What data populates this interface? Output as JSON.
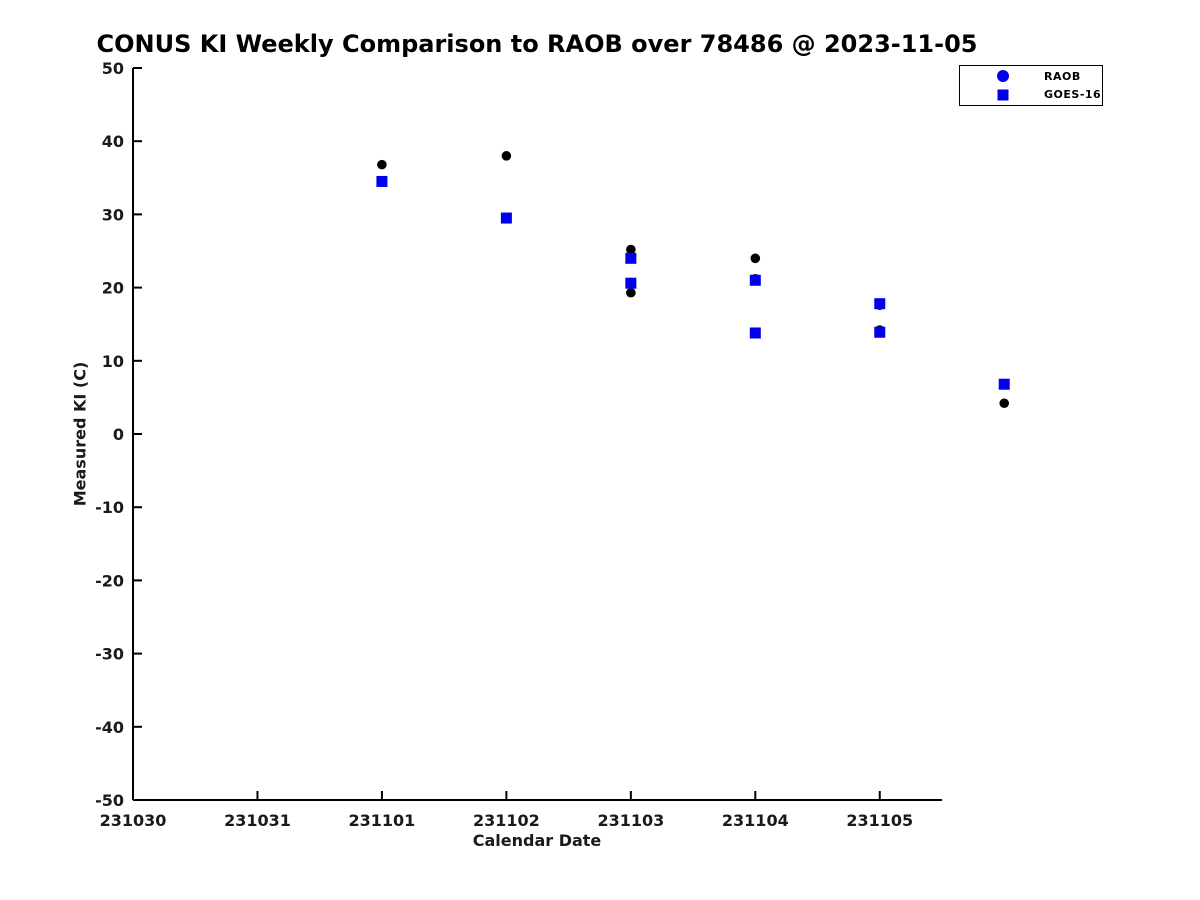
{
  "page": {
    "background": "#ffffff"
  },
  "chart_data": {
    "type": "scatter",
    "title": "CONUS KI Weekly Comparison to RAOB over 78486 @ 2023-11-05",
    "xlabel": "Calendar Date",
    "ylabel": "Measured KI (C)",
    "x_tick_labels": [
      "231030",
      "231031",
      "231101",
      "231102",
      "231103",
      "231104",
      "231105"
    ],
    "y_ticks": [
      50,
      40,
      30,
      20,
      10,
      0,
      -10,
      -20,
      -30,
      -40,
      -50
    ],
    "ylim": [
      -50,
      50
    ],
    "xlim_dates": [
      231030,
      231105.5
    ],
    "grid": false,
    "axis_color": "#000000",
    "tick_text_color": "#1a1a1a",
    "legend": {
      "position": "top-right",
      "entries": [
        {
          "label": "RAOB",
          "marker": "circle",
          "color": "#0000ee"
        },
        {
          "label": "GOES-16",
          "marker": "square",
          "color": "#0000ee"
        }
      ]
    },
    "series": [
      {
        "name": "RAOB",
        "marker": "circle",
        "color": "#000000",
        "x": [
          231031.5,
          231101.5,
          231102.5,
          231103.0,
          231103.5,
          231104.0,
          231104.5,
          231105.0,
          231105.5
        ],
        "y": [
          36.8,
          38.0,
          25.2,
          19.3,
          21.2,
          24.0,
          17.6,
          14.2,
          4.2
        ]
      },
      {
        "name": "GOES-16",
        "marker": "square",
        "color": "#0000ee",
        "x": [
          231031.5,
          231101.5,
          231102.5,
          231103.0,
          231103.5,
          231104.0,
          231104.5,
          231105.0,
          231105.5
        ],
        "y": [
          34.5,
          29.5,
          24.0,
          20.6,
          13.8,
          21.0,
          17.8,
          13.9,
          6.8
        ]
      }
    ]
  }
}
